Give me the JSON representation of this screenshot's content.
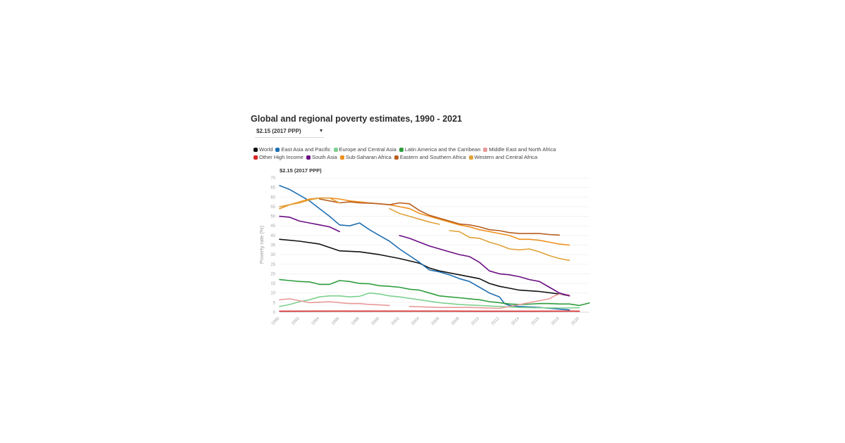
{
  "chart_data": {
    "type": "line",
    "title": "Global and regional poverty estimates, 1990 - 2021",
    "dropdown": {
      "selected": "$2.15 (2017 PPP)",
      "caret": "▾"
    },
    "subtitle": "$2.15 (2017 PPP)",
    "ylabel": "Poverty rate (%)",
    "xlabel": "",
    "xlim": [
      1990,
      2021
    ],
    "ylim": [
      0,
      70
    ],
    "yticks": [
      0,
      5,
      10,
      15,
      20,
      25,
      30,
      35,
      40,
      45,
      50,
      55,
      60,
      65,
      70
    ],
    "xticks": [
      1990,
      1992,
      1994,
      1996,
      1998,
      2000,
      2002,
      2004,
      2006,
      2008,
      2010,
      2012,
      2014,
      2016,
      2018,
      2020
    ],
    "series": [
      {
        "name": "World",
        "color": "#111111",
        "segments": [
          [
            [
              1990,
              38
            ],
            [
              1992,
              37
            ],
            [
              1994,
              35.5
            ],
            [
              1996,
              32
            ],
            [
              1998,
              31.5
            ],
            [
              2000,
              30
            ],
            [
              2002,
              28
            ],
            [
              2004,
              25.5
            ],
            [
              2005,
              23
            ],
            [
              2006,
              21.5
            ],
            [
              2008,
              19.5
            ],
            [
              2010,
              17.5
            ],
            [
              2011,
              15
            ],
            [
              2012,
              13.5
            ],
            [
              2013,
              12.5
            ],
            [
              2014,
              11.5
            ],
            [
              2016,
              10.8
            ],
            [
              2018,
              9.5
            ],
            [
              2019,
              8.6
            ]
          ]
        ]
      },
      {
        "name": "East Asia and Pacific",
        "color": "#1f6fb2",
        "segments": [
          [
            [
              1990,
              66
            ],
            [
              1991,
              64
            ],
            [
              1992,
              61
            ],
            [
              1993,
              58
            ],
            [
              1994,
              54
            ],
            [
              1995,
              50
            ],
            [
              1996,
              45.5
            ],
            [
              1997,
              45
            ],
            [
              1998,
              46.5
            ],
            [
              1999,
              43
            ],
            [
              2000,
              40
            ],
            [
              2001,
              37
            ],
            [
              2002,
              33
            ],
            [
              2003,
              29.5
            ],
            [
              2004,
              26
            ],
            [
              2005,
              22
            ],
            [
              2006,
              21
            ],
            [
              2007,
              19.5
            ],
            [
              2008,
              17.5
            ],
            [
              2009,
              16
            ],
            [
              2010,
              13
            ],
            [
              2011,
              10
            ],
            [
              2012,
              8
            ],
            [
              2012.5,
              4.5
            ],
            [
              2013,
              3.5
            ],
            [
              2014,
              3
            ],
            [
              2016,
              2.5
            ],
            [
              2018,
              1.6
            ],
            [
              2019,
              1.2
            ]
          ]
        ]
      },
      {
        "name": "Europe and Central Asia",
        "color": "#7ed08f",
        "segments": [
          [
            [
              1990,
              3
            ],
            [
              1991,
              4
            ],
            [
              1992,
              5.5
            ],
            [
              1993,
              6.5
            ],
            [
              1994,
              8
            ],
            [
              1995,
              8.5
            ],
            [
              1996,
              8.5
            ],
            [
              1997,
              8
            ],
            [
              1998,
              8.3
            ],
            [
              1999,
              10
            ],
            [
              2000,
              9.5
            ],
            [
              2001,
              8.5
            ],
            [
              2002,
              8
            ],
            [
              2004,
              6.5
            ],
            [
              2006,
              5
            ],
            [
              2008,
              4
            ],
            [
              2010,
              3.5
            ],
            [
              2012,
              3
            ],
            [
              2014,
              2.5
            ],
            [
              2016,
              2.3
            ],
            [
              2018,
              2.2
            ],
            [
              2020,
              2.3
            ]
          ]
        ]
      },
      {
        "name": "Latin America and the Carribean",
        "color": "#2e9e3f",
        "segments": [
          [
            [
              1990,
              17
            ],
            [
              1991,
              16.5
            ],
            [
              1992,
              16
            ],
            [
              1993,
              15.8
            ],
            [
              1994,
              14.5
            ],
            [
              1995,
              14.5
            ],
            [
              1996,
              16.5
            ],
            [
              1997,
              16
            ],
            [
              1998,
              15
            ],
            [
              1999,
              14.8
            ],
            [
              2000,
              13.8
            ],
            [
              2001,
              13.5
            ],
            [
              2002,
              13
            ],
            [
              2003,
              12
            ],
            [
              2004,
              11.5
            ],
            [
              2005,
              10
            ],
            [
              2006,
              8.5
            ],
            [
              2007,
              8
            ],
            [
              2008,
              7.5
            ],
            [
              2009,
              7
            ],
            [
              2010,
              6.5
            ],
            [
              2011,
              5.5
            ],
            [
              2012,
              5
            ],
            [
              2013,
              4.3
            ],
            [
              2014,
              4
            ],
            [
              2015,
              4.2
            ],
            [
              2016,
              4.5
            ],
            [
              2017,
              4.5
            ],
            [
              2018,
              4.3
            ],
            [
              2019,
              4.3
            ],
            [
              2020,
              3.5
            ],
            [
              2021,
              4.8
            ]
          ]
        ]
      },
      {
        "name": "Middle East and North Africa",
        "color": "#e99a9a",
        "segments": [
          [
            [
              1990,
              6.5
            ],
            [
              1991,
              7
            ],
            [
              1992,
              6
            ],
            [
              1993,
              5
            ],
            [
              1994,
              5.2
            ],
            [
              1995,
              5.5
            ],
            [
              1996,
              5
            ],
            [
              1997,
              4.5
            ],
            [
              1998,
              4.5
            ],
            [
              1999,
              4
            ],
            [
              2000,
              3.8
            ],
            [
              2001,
              3.5
            ]
          ],
          [
            [
              2003,
              3
            ],
            [
              2006,
              2.5
            ],
            [
              2009,
              2.5
            ],
            [
              2012,
              2
            ],
            [
              2014,
              4
            ],
            [
              2015,
              5
            ],
            [
              2016,
              6
            ],
            [
              2017,
              7
            ],
            [
              2017.5,
              8.5
            ],
            [
              2018,
              9.5
            ],
            [
              2019,
              9
            ]
          ]
        ]
      },
      {
        "name": "Other High Income",
        "color": "#d62728",
        "segments": [
          [
            [
              1990,
              0.5
            ],
            [
              1995,
              0.6
            ],
            [
              2000,
              0.6
            ],
            [
              2005,
              0.6
            ],
            [
              2010,
              0.5
            ],
            [
              2015,
              0.5
            ],
            [
              2019,
              0.6
            ],
            [
              2020,
              0.5
            ]
          ]
        ]
      },
      {
        "name": "South Asia",
        "color": "#6a0d83",
        "segments": [
          [
            [
              1990,
              50
            ],
            [
              1991,
              49.5
            ],
            [
              1992,
              47.5
            ],
            [
              1993,
              46.5
            ],
            [
              1994,
              45.5
            ],
            [
              1995,
              44.5
            ],
            [
              1996,
              42
            ]
          ],
          [
            [
              2002,
              40
            ],
            [
              2003,
              38.5
            ],
            [
              2004,
              36.5
            ],
            [
              2005,
              34.5
            ],
            [
              2006,
              33
            ],
            [
              2007,
              31.5
            ],
            [
              2008,
              30
            ],
            [
              2009,
              29
            ],
            [
              2010,
              26
            ],
            [
              2011,
              21.5
            ],
            [
              2012,
              20
            ],
            [
              2013,
              19.5
            ],
            [
              2014,
              18.5
            ],
            [
              2015,
              17
            ],
            [
              2016,
              16
            ],
            [
              2017,
              13
            ],
            [
              2018,
              10
            ],
            [
              2019,
              8.5
            ]
          ]
        ]
      },
      {
        "name": "Sub-Saharan Africa",
        "color": "#ef8f1c",
        "segments": [
          [
            [
              1990,
              54
            ],
            [
              1991,
              56
            ],
            [
              1992,
              57.5
            ],
            [
              1993,
              59
            ],
            [
              1994,
              59.5
            ],
            [
              1995,
              59.5
            ],
            [
              1996,
              59
            ],
            [
              1997,
              58
            ],
            [
              1998,
              57.5
            ],
            [
              1999,
              57
            ],
            [
              2000,
              56.5
            ],
            [
              2001,
              56
            ],
            [
              2002,
              55
            ],
            [
              2003,
              54
            ],
            [
              2004,
              51.5
            ],
            [
              2005,
              50
            ],
            [
              2006,
              48.5
            ],
            [
              2007,
              47
            ],
            [
              2008,
              45.5
            ],
            [
              2009,
              44.5
            ],
            [
              2010,
              43
            ],
            [
              2011,
              42
            ],
            [
              2012,
              41
            ],
            [
              2013,
              40
            ],
            [
              2014,
              38
            ],
            [
              2015,
              38
            ],
            [
              2016,
              37.5
            ],
            [
              2017,
              36.5
            ],
            [
              2018,
              35.5
            ],
            [
              2019,
              35
            ]
          ]
        ]
      },
      {
        "name": "Eastern and Southern Africa",
        "color": "#b85e1f",
        "segments": [
          [
            [
              1994,
              59
            ],
            [
              1995,
              58
            ],
            [
              1996,
              57
            ],
            [
              1997,
              57.5
            ],
            [
              1998,
              57
            ],
            [
              1999,
              56.8
            ],
            [
              2000,
              56.5
            ],
            [
              2001,
              56
            ],
            [
              2002,
              57
            ],
            [
              2003,
              56.5
            ],
            [
              2004,
              53
            ],
            [
              2005,
              50.5
            ],
            [
              2006,
              49
            ],
            [
              2007,
              47.5
            ],
            [
              2008,
              46
            ],
            [
              2009,
              45.5
            ],
            [
              2010,
              44.5
            ],
            [
              2011,
              43
            ],
            [
              2012,
              42.5
            ],
            [
              2013,
              41.5
            ],
            [
              2014,
              41
            ],
            [
              2016,
              41
            ],
            [
              2017,
              40.5
            ],
            [
              2018,
              40.2
            ]
          ]
        ]
      },
      {
        "name": "Western and Central Africa",
        "color": "#e0a238",
        "segments": [
          [
            [
              1990,
              55
            ],
            [
              1991,
              56
            ],
            [
              1992,
              57
            ],
            [
              1993,
              58.5
            ],
            [
              1994,
              59.5
            ],
            [
              1995,
              59.5
            ],
            [
              1996,
              57
            ]
          ],
          [
            [
              2001,
              54
            ],
            [
              2002,
              51.5
            ],
            [
              2003,
              50
            ],
            [
              2004,
              48.5
            ],
            [
              2005,
              47
            ],
            [
              2006,
              45.8
            ]
          ],
          [
            [
              2007,
              42.5
            ],
            [
              2008,
              42
            ],
            [
              2009,
              39
            ],
            [
              2010,
              38.5
            ],
            [
              2011,
              36.5
            ],
            [
              2012,
              35
            ],
            [
              2013,
              33
            ],
            [
              2014,
              32.5
            ],
            [
              2015,
              33
            ],
            [
              2016,
              31.5
            ],
            [
              2017,
              29.5
            ],
            [
              2018,
              28
            ],
            [
              2019,
              27
            ]
          ]
        ]
      }
    ]
  }
}
